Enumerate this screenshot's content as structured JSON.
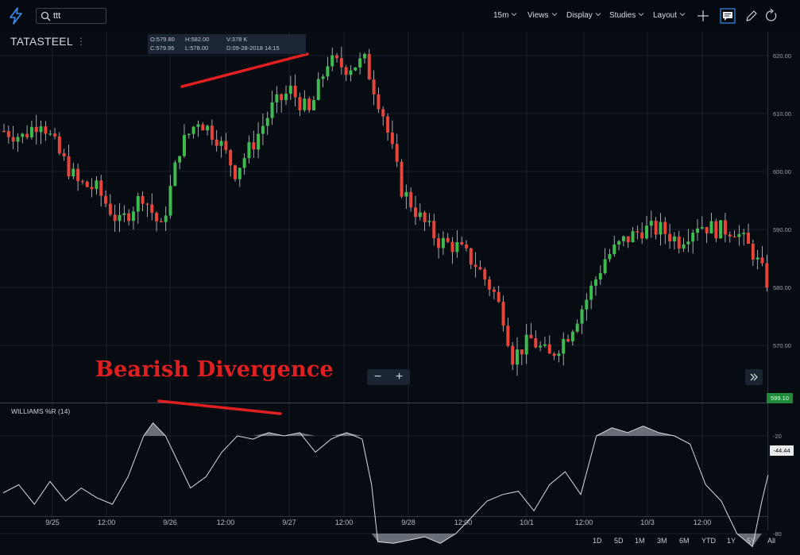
{
  "toolbar": {
    "search_value": "ttt",
    "interval": "15m",
    "views": "Views",
    "display": "Display",
    "studies": "Studies",
    "layout": "Layout"
  },
  "symbol": "TATASTEEL",
  "ohlc": {
    "open": "O:579.80",
    "high": "H:582.00",
    "volume": "V:378 K",
    "close": "C:579.95",
    "low": "L:578.00",
    "date": "D:09-28-2018 14:15"
  },
  "annotation": "Bearish Divergence",
  "last_price": "599.10",
  "indicator": {
    "label": "WILLIAMS %R (14)",
    "value": "-44.44"
  },
  "ranges": [
    "1D",
    "5D",
    "1M",
    "3M",
    "6M",
    "YTD",
    "1Y",
    "5Y",
    "All"
  ],
  "colors": {
    "up": "#3dbb4e",
    "down": "#e8443a",
    "annotation": "#e02020",
    "background": "#070b12"
  },
  "chart_data": {
    "type": "candlestick",
    "price_axis": {
      "ticks": [
        570,
        580,
        590,
        600,
        610,
        620
      ],
      "labels": [
        "570.00",
        "580.00",
        "590.00",
        "600.00",
        "610.00",
        "620.00"
      ]
    },
    "indicator_axis": {
      "ticks": [
        -20,
        -80
      ],
      "labels": [
        "-20",
        "-80"
      ]
    },
    "x_ticks": [
      "9/25",
      "12:00",
      "9/26",
      "12:00",
      "9/27",
      "12:00",
      "9/28",
      "12:00",
      "10/1",
      "12:00",
      "10/3",
      "12:00"
    ],
    "anchors": [
      [
        0,
        607
      ],
      [
        4,
        606
      ],
      [
        8,
        609
      ],
      [
        12,
        603
      ],
      [
        16,
        598
      ],
      [
        20,
        597
      ],
      [
        25,
        591
      ],
      [
        30,
        596
      ],
      [
        34,
        590
      ],
      [
        38,
        604
      ],
      [
        42,
        609
      ],
      [
        46,
        606
      ],
      [
        50,
        600
      ],
      [
        54,
        605
      ],
      [
        58,
        611
      ],
      [
        62,
        614
      ],
      [
        66,
        610
      ],
      [
        70,
        619
      ],
      [
        74,
        618
      ],
      [
        78,
        619
      ],
      [
        82,
        610
      ],
      [
        86,
        597
      ],
      [
        90,
        592
      ],
      [
        94,
        588
      ],
      [
        98,
        587
      ],
      [
        102,
        584
      ],
      [
        106,
        579
      ],
      [
        108,
        575
      ],
      [
        110,
        568
      ],
      [
        114,
        571
      ],
      [
        118,
        568
      ],
      [
        122,
        572
      ],
      [
        126,
        578
      ],
      [
        130,
        585
      ],
      [
        134,
        588
      ],
      [
        138,
        590
      ],
      [
        142,
        590
      ],
      [
        146,
        588
      ],
      [
        150,
        591
      ],
      [
        154,
        590
      ],
      [
        158,
        590
      ],
      [
        162,
        586
      ],
      [
        165,
        581
      ]
    ],
    "williams_r": [
      [
        0,
        -55
      ],
      [
        5,
        -50
      ],
      [
        10,
        -62
      ],
      [
        15,
        -48
      ],
      [
        20,
        -60
      ],
      [
        25,
        -52
      ],
      [
        30,
        -58
      ],
      [
        35,
        -62
      ],
      [
        40,
        -45
      ],
      [
        45,
        -20
      ],
      [
        48,
        -12
      ],
      [
        52,
        -20
      ],
      [
        55,
        -32
      ],
      [
        60,
        -52
      ],
      [
        65,
        -45
      ],
      [
        70,
        -30
      ],
      [
        75,
        -20
      ],
      [
        80,
        -22
      ],
      [
        85,
        -18
      ],
      [
        90,
        -20
      ],
      [
        95,
        -18
      ],
      [
        100,
        -30
      ],
      [
        105,
        -22
      ],
      [
        110,
        -18
      ],
      [
        115,
        -22
      ],
      [
        118,
        -50
      ],
      [
        120,
        -85
      ],
      [
        125,
        -86
      ],
      [
        130,
        -84
      ],
      [
        135,
        -82
      ],
      [
        140,
        -86
      ],
      [
        145,
        -80
      ],
      [
        150,
        -70
      ],
      [
        155,
        -60
      ],
      [
        160,
        -56
      ],
      [
        165,
        -54
      ],
      [
        170,
        -66
      ],
      [
        175,
        -50
      ],
      [
        180,
        -42
      ],
      [
        185,
        -56
      ],
      [
        190,
        -20
      ],
      [
        195,
        -15
      ],
      [
        200,
        -18
      ],
      [
        205,
        -14
      ],
      [
        210,
        -18
      ],
      [
        215,
        -20
      ],
      [
        220,
        -25
      ],
      [
        225,
        -50
      ],
      [
        230,
        -60
      ],
      [
        235,
        -80
      ],
      [
        240,
        -88
      ],
      [
        243,
        -60
      ],
      [
        245,
        -44
      ]
    ]
  }
}
